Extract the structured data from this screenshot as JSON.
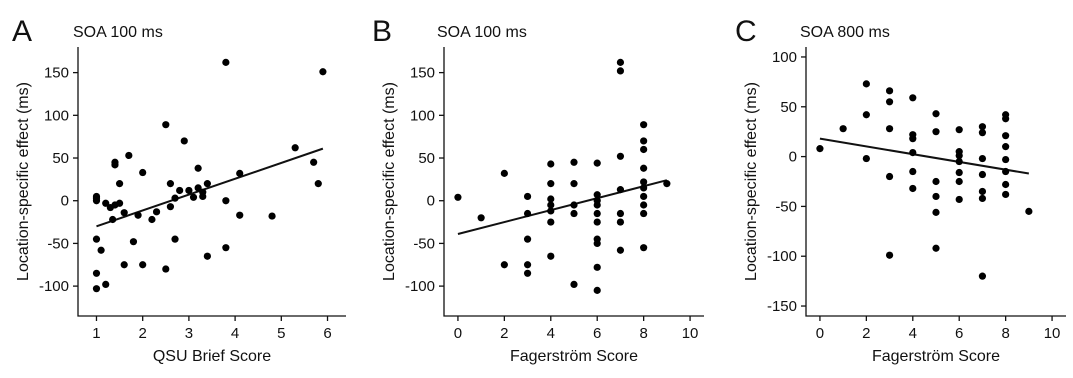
{
  "chart_data": [
    {
      "type": "scatter",
      "panel_label": "A",
      "title": "SOA 100 ms",
      "xlabel": "QSU Brief Score",
      "ylabel": "Location-specific effect (ms)",
      "xlim": [
        0.6,
        6.4
      ],
      "ylim": [
        -135,
        180
      ],
      "xticks": [
        1,
        2,
        3,
        4,
        5,
        6
      ],
      "yticks": [
        -100,
        -50,
        0,
        50,
        100,
        150
      ],
      "grid": false,
      "regression": [
        [
          1.0,
          -30
        ],
        [
          5.9,
          61
        ]
      ],
      "points": [
        [
          1.0,
          3
        ],
        [
          1.0,
          5
        ],
        [
          1.0,
          0
        ],
        [
          1.0,
          -45
        ],
        [
          1.0,
          -85
        ],
        [
          1.0,
          -103
        ],
        [
          1.1,
          -58
        ],
        [
          1.2,
          -98
        ],
        [
          1.2,
          -3
        ],
        [
          1.3,
          -8
        ],
        [
          1.35,
          -22
        ],
        [
          1.4,
          45
        ],
        [
          1.4,
          42
        ],
        [
          1.4,
          -5
        ],
        [
          1.5,
          20
        ],
        [
          1.5,
          -3
        ],
        [
          1.6,
          -14
        ],
        [
          1.6,
          -75
        ],
        [
          1.7,
          53
        ],
        [
          1.8,
          -48
        ],
        [
          1.9,
          -17
        ],
        [
          2.0,
          33
        ],
        [
          2.0,
          -75
        ],
        [
          2.2,
          -22
        ],
        [
          2.3,
          -13
        ],
        [
          2.5,
          89
        ],
        [
          2.5,
          -80
        ],
        [
          2.6,
          -7
        ],
        [
          2.6,
          20
        ],
        [
          2.7,
          -45
        ],
        [
          2.7,
          3
        ],
        [
          2.8,
          12
        ],
        [
          2.9,
          70
        ],
        [
          3.0,
          12
        ],
        [
          3.1,
          4
        ],
        [
          3.2,
          38
        ],
        [
          3.2,
          15
        ],
        [
          3.3,
          5
        ],
        [
          3.3,
          10
        ],
        [
          3.4,
          -65
        ],
        [
          3.4,
          20
        ],
        [
          3.8,
          162
        ],
        [
          3.8,
          -55
        ],
        [
          3.8,
          0
        ],
        [
          4.1,
          32
        ],
        [
          4.1,
          -17
        ],
        [
          4.8,
          -18
        ],
        [
          5.3,
          62
        ],
        [
          5.7,
          45
        ],
        [
          5.8,
          20
        ],
        [
          5.9,
          151
        ]
      ]
    },
    {
      "type": "scatter",
      "panel_label": "B",
      "title": "SOA 100 ms",
      "xlabel": "Fagerström Score",
      "ylabel": "Location-specific effect (ms)",
      "xlim": [
        -0.6,
        10.6
      ],
      "ylim": [
        -135,
        180
      ],
      "xticks": [
        0,
        2,
        4,
        6,
        8,
        10
      ],
      "yticks": [
        -100,
        -50,
        0,
        50,
        100,
        150
      ],
      "grid": false,
      "regression": [
        [
          0,
          -39
        ],
        [
          9,
          24
        ]
      ],
      "points": [
        [
          0,
          4
        ],
        [
          1,
          -20
        ],
        [
          2,
          32
        ],
        [
          2,
          -75
        ],
        [
          3,
          5
        ],
        [
          3,
          -15
        ],
        [
          3,
          -45
        ],
        [
          3,
          -75
        ],
        [
          3,
          -85
        ],
        [
          4,
          43
        ],
        [
          4,
          20
        ],
        [
          4,
          2
        ],
        [
          4,
          -5
        ],
        [
          4,
          -12
        ],
        [
          4,
          -25
        ],
        [
          4,
          -65
        ],
        [
          5,
          45
        ],
        [
          5,
          20
        ],
        [
          5,
          -5
        ],
        [
          5,
          -15
        ],
        [
          5,
          -98
        ],
        [
          6,
          44
        ],
        [
          6,
          7
        ],
        [
          6,
          0
        ],
        [
          6,
          -5
        ],
        [
          6,
          -15
        ],
        [
          6,
          -25
        ],
        [
          6,
          -45
        ],
        [
          6,
          -50
        ],
        [
          6,
          -78
        ],
        [
          6,
          -105
        ],
        [
          7,
          162
        ],
        [
          7,
          152
        ],
        [
          7,
          52
        ],
        [
          7,
          13
        ],
        [
          7,
          -15
        ],
        [
          7,
          -25
        ],
        [
          7,
          -58
        ],
        [
          8,
          89
        ],
        [
          8,
          70
        ],
        [
          8,
          60
        ],
        [
          8,
          38
        ],
        [
          8,
          22
        ],
        [
          8,
          15
        ],
        [
          8,
          5
        ],
        [
          8,
          -5
        ],
        [
          8,
          -15
        ],
        [
          8,
          -55
        ],
        [
          9,
          20
        ]
      ]
    },
    {
      "type": "scatter",
      "panel_label": "C",
      "title": "SOA 800 ms",
      "xlabel": "Fagerström Score",
      "ylabel": "Location-specific effect (ms)",
      "xlim": [
        -0.6,
        10.6
      ],
      "ylim": [
        -160,
        110
      ],
      "xticks": [
        0,
        2,
        4,
        6,
        8,
        10
      ],
      "yticks": [
        -150,
        -100,
        -50,
        0,
        50,
        100
      ],
      "grid": false,
      "regression": [
        [
          0,
          18
        ],
        [
          9,
          -17
        ]
      ],
      "points": [
        [
          0,
          8
        ],
        [
          1,
          28
        ],
        [
          2,
          73
        ],
        [
          2,
          42
        ],
        [
          2,
          -2
        ],
        [
          3,
          66
        ],
        [
          3,
          55
        ],
        [
          3,
          28
        ],
        [
          3,
          -20
        ],
        [
          3,
          -99
        ],
        [
          4,
          59
        ],
        [
          4,
          22
        ],
        [
          4,
          18
        ],
        [
          4,
          4
        ],
        [
          4,
          -15
        ],
        [
          4,
          -32
        ],
        [
          5,
          43
        ],
        [
          5,
          25
        ],
        [
          5,
          -25
        ],
        [
          5,
          -40
        ],
        [
          5,
          -56
        ],
        [
          5,
          -92
        ],
        [
          6,
          27
        ],
        [
          6,
          5
        ],
        [
          6,
          1
        ],
        [
          6,
          -5
        ],
        [
          6,
          -16
        ],
        [
          6,
          -25
        ],
        [
          6,
          -43
        ],
        [
          7,
          30
        ],
        [
          7,
          24
        ],
        [
          7,
          -2
        ],
        [
          7,
          -18
        ],
        [
          7,
          -35
        ],
        [
          7,
          -42
        ],
        [
          7,
          -120
        ],
        [
          8,
          42
        ],
        [
          8,
          38
        ],
        [
          8,
          21
        ],
        [
          8,
          10
        ],
        [
          8,
          -3
        ],
        [
          8,
          -15
        ],
        [
          8,
          -28
        ],
        [
          8,
          -38
        ],
        [
          9,
          -55
        ]
      ]
    }
  ]
}
